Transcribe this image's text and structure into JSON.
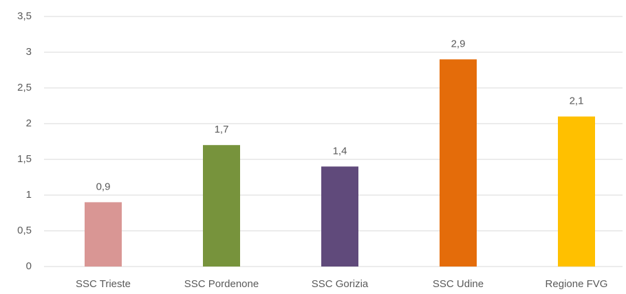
{
  "chart_data": {
    "type": "bar",
    "categories": [
      "SSC Trieste",
      "SSC Pordenone",
      "SSC Gorizia",
      "SSC Udine",
      "Regione FVG"
    ],
    "values": [
      0.9,
      1.7,
      1.4,
      2.9,
      2.1
    ],
    "value_labels": [
      "0,9",
      "1,7",
      "1,4",
      "2,9",
      "2,1"
    ],
    "colors": [
      "#d99694",
      "#77933c",
      "#604a7b",
      "#e46c0a",
      "#ffc000"
    ],
    "ylim": [
      0,
      3.5
    ],
    "yticks": [
      0,
      {
        "value": 0.5,
        "label": "0,5"
      },
      1,
      {
        "value": 1.5,
        "label": "1,5"
      },
      2,
      {
        "value": 2.5,
        "label": "2,5"
      },
      3,
      {
        "value": 3.5,
        "label": "3,5"
      }
    ],
    "grid": true
  }
}
